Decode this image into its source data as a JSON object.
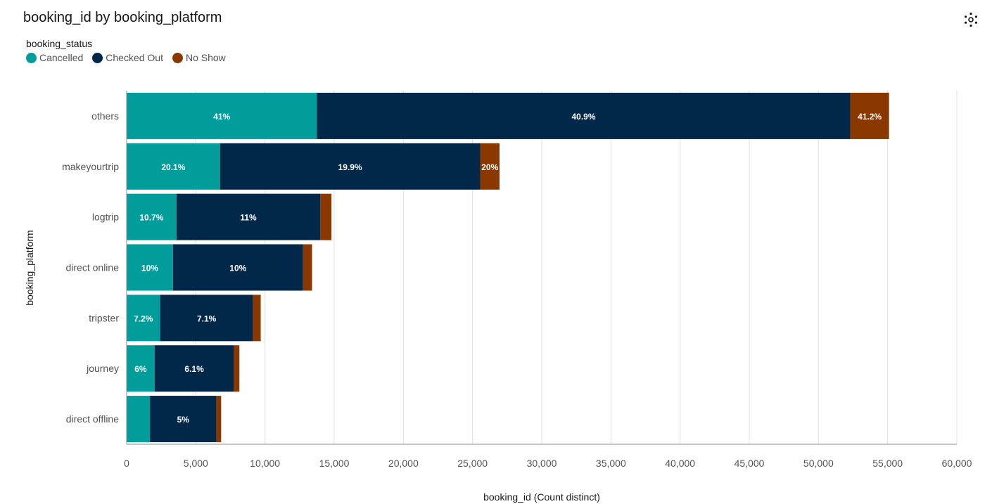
{
  "header": {
    "title": "booking_id by booking_platform",
    "settings_icon": "settings-gear-icon"
  },
  "legend": {
    "title": "booking_status",
    "items": [
      {
        "label": "Cancelled",
        "color": "#009d9a"
      },
      {
        "label": "Checked Out",
        "color": "#012749"
      },
      {
        "label": "No Show",
        "color": "#8a3800"
      }
    ]
  },
  "chart_data": {
    "type": "bar",
    "orientation": "horizontal",
    "stacked": true,
    "title": "booking_id by booking_platform",
    "xlabel": "booking_id (Count distinct)",
    "ylabel": "booking_platform",
    "xlim": [
      0,
      60000
    ],
    "xticks": [
      "0",
      "5,000",
      "10,000",
      "15,000",
      "20,000",
      "25,000",
      "30,000",
      "35,000",
      "40,000",
      "45,000",
      "50,000",
      "55,000",
      "60,000"
    ],
    "grid": true,
    "legend_position": "top-left",
    "categories": [
      "others",
      "makeyourtrip",
      "logtrip",
      "direct online",
      "tripster",
      "journey",
      "direct offline"
    ],
    "series": [
      {
        "name": "Cancelled",
        "color": "#009d9a",
        "values": [
          13750,
          6750,
          3600,
          3350,
          2420,
          2020,
          1680
        ],
        "labels": [
          "41%",
          "20.1%",
          "10.7%",
          "10%",
          "7.2%",
          "6%",
          ""
        ]
      },
      {
        "name": "Checked Out",
        "color": "#012749",
        "values": [
          38550,
          18800,
          10400,
          9400,
          6720,
          5730,
          4800
        ],
        "labels": [
          "40.9%",
          "19.9%",
          "11%",
          "10%",
          "7.1%",
          "6.1%",
          "5%"
        ]
      },
      {
        "name": "No Show",
        "color": "#8a3800",
        "values": [
          2800,
          1400,
          800,
          650,
          550,
          400,
          350
        ],
        "labels": [
          "41.2%",
          "20%",
          "",
          "",
          "",
          "",
          ""
        ]
      }
    ]
  }
}
